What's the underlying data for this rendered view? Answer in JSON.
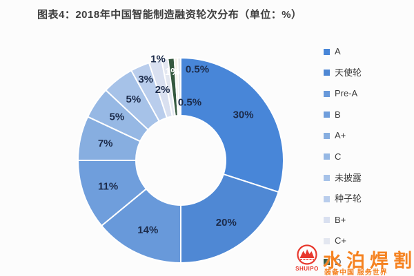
{
  "title": "图表4：2018年中国智能制造融资轮次分布（单位：%）",
  "chart_data": {
    "type": "pie",
    "subtype": "donut",
    "title": "2018年中国智能制造融资轮次分布",
    "unit": "%",
    "legend_position": "right",
    "start_angle_deg": 0,
    "direction": "clockwise",
    "slices": [
      {
        "name": "A",
        "value": 30,
        "label": "30%",
        "color": "#4886d8"
      },
      {
        "name": "天使轮",
        "value": 20,
        "label": "20%",
        "color": "#4f88d4"
      },
      {
        "name": "Pre-A",
        "value": 14,
        "label": "14%",
        "color": "#6899da"
      },
      {
        "name": "B",
        "value": 11,
        "label": "11%",
        "color": "#6f9edc"
      },
      {
        "name": "A+",
        "value": 7,
        "label": "7%",
        "color": "#87aee0"
      },
      {
        "name": "C",
        "value": 5,
        "label": "5%",
        "color": "#96b8e4"
      },
      {
        "name": "未披露",
        "value": 5,
        "label": "5%",
        "color": "#a6c2e8"
      },
      {
        "name": "种子轮",
        "value": 3,
        "label": "3%",
        "color": "#b9cdec"
      },
      {
        "name": "B+",
        "value": 2,
        "label": "2%",
        "color": "#d9e0f0"
      },
      {
        "name": "C+",
        "value": 1,
        "label": "1%",
        "color": "#e3e7f0"
      },
      {
        "name": "D",
        "value": 1,
        "label": "1%",
        "color": "#35593f"
      },
      {
        "name": "",
        "value": 0.5,
        "label": "0.5%",
        "color": "#f2efe4"
      },
      {
        "name": "",
        "value": 0.5,
        "label": "0.5%",
        "color": "#e7e9ec"
      }
    ],
    "label_color": "#1c2b4a",
    "label_color_on_dark": "#ffffff"
  },
  "watermark": {
    "brand": "水泊焊割",
    "latin": "SHUIPO",
    "slogan": "装备中国 服务世界",
    "brand_color": "#f58220",
    "accent_red": "#e8382d"
  }
}
